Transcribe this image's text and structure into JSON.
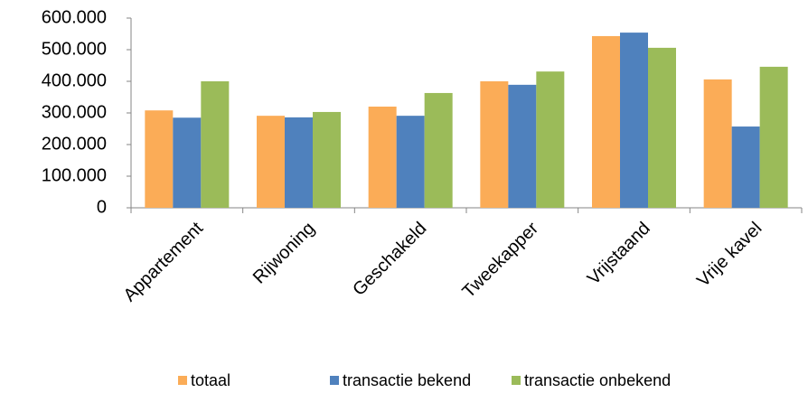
{
  "chart_data": {
    "type": "bar",
    "categories": [
      "Appartement",
      "Rijwoning",
      "Geschakeld",
      "Tweekapper",
      "Vrijstaand",
      "Vrije kavel"
    ],
    "series": [
      {
        "name": "totaal",
        "color": "#fbac57",
        "values": [
          308000,
          291000,
          320000,
          400000,
          543000,
          406000
        ]
      },
      {
        "name": "transactie bekend",
        "color": "#4f81bd",
        "values": [
          285000,
          286000,
          291000,
          389000,
          554000,
          257000
        ]
      },
      {
        "name": "transactie onbekend",
        "color": "#9bbb59",
        "values": [
          400000,
          303000,
          363000,
          431000,
          506000,
          446000
        ]
      }
    ],
    "ylim": [
      0,
      600000
    ],
    "yticks": [
      0,
      {
        "value": 100000,
        "label": "100.000"
      },
      {
        "value": 200000,
        "label": "200.000"
      },
      {
        "value": 300000,
        "label": "300.000"
      },
      {
        "value": 400000,
        "label": "400.000"
      },
      {
        "value": 500000,
        "label": "500.000"
      },
      {
        "value": 600000,
        "label": "600.000"
      }
    ],
    "grid": false,
    "legend": "bottom"
  }
}
